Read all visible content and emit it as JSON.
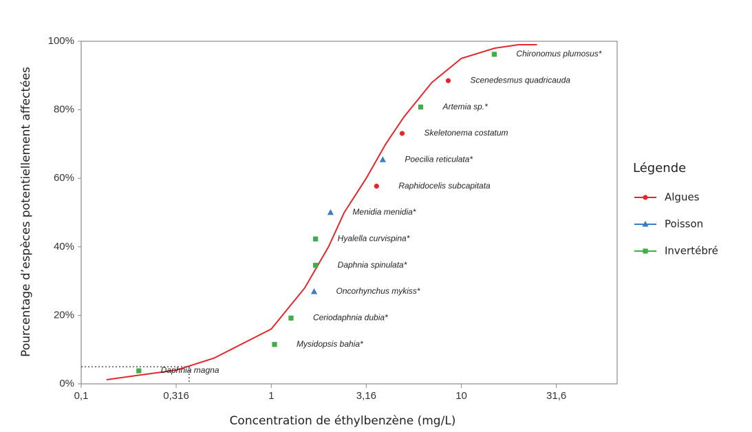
{
  "chart_data": {
    "type": "ssd",
    "x_label": "Concentration de éthylbenzène  (mg/L)",
    "y_label": "Pourcentage d’espèces potentiellement  affectées",
    "log_x": true,
    "xlim": [
      0.1,
      66
    ],
    "xticks": [
      {
        "value": 0.1,
        "label": "0,1"
      },
      {
        "value": 0.316,
        "label": "0,316"
      },
      1,
      {
        "value": 3.16,
        "label": "3,16"
      },
      10,
      {
        "value": 31.6,
        "label": "31,6"
      }
    ],
    "ylim": [
      0,
      100
    ],
    "yticks": [
      {
        "value": 0,
        "label": "0%"
      },
      {
        "value": 20,
        "label": "20%"
      },
      {
        "value": 40,
        "label": "40%"
      },
      {
        "value": 60,
        "label": "60%"
      },
      {
        "value": 80,
        "label": "80%"
      },
      {
        "value": 100,
        "label": "100%"
      }
    ],
    "legend_title": "Légende",
    "legend_position": "right",
    "series": [
      {
        "name": "Algues",
        "color": "#e8252b",
        "marker": "circle",
        "x": [
          3.58,
          4.88,
          8.53
        ],
        "values": [
          57.7,
          73.1,
          88.5
        ],
        "labels": [
          "Raphidocelis subcapitata",
          "Skeletonema costatum",
          "Scenedesmus quadricauda"
        ]
      },
      {
        "name": "Poisson",
        "color": "#3b7dbf",
        "marker": "triangle",
        "x": [
          1.68,
          2.05,
          3.86
        ],
        "values": [
          26.9,
          50,
          65.4
        ],
        "labels": [
          "Oncorhynchus mykiss*",
          "Menidia menidia*",
          "Poecilia reticulata*"
        ]
      },
      {
        "name": "Invertébré",
        "color": "#3fae49",
        "marker": "square",
        "x": [
          0.201,
          1.04,
          1.27,
          1.71,
          1.71,
          6.11,
          14.9
        ],
        "values": [
          3.8,
          11.5,
          19.2,
          34.6,
          42.3,
          80.8,
          96.2
        ],
        "labels": [
          "Daphnia magna",
          "Mysidopsis bahia*",
          "Ceriodaphnia dubia*",
          "Daphnia spinulata*",
          "Hyalella curvispina*",
          "Artemia sp.*",
          "Chironomus plumosus*"
        ]
      }
    ],
    "curve": {
      "color": "#e8252b",
      "x": [
        0.136,
        0.2,
        0.316,
        0.5,
        1,
        1.5,
        2,
        2.42,
        3.16,
        4,
        5,
        7,
        10,
        15,
        20,
        25
      ],
      "values": [
        1.2,
        2.5,
        4,
        7.5,
        16,
        28,
        40,
        50,
        60,
        70,
        78,
        88,
        95,
        98,
        99,
        99
      ]
    },
    "hc5": {
      "x": 0.37,
      "y": 5
    }
  }
}
